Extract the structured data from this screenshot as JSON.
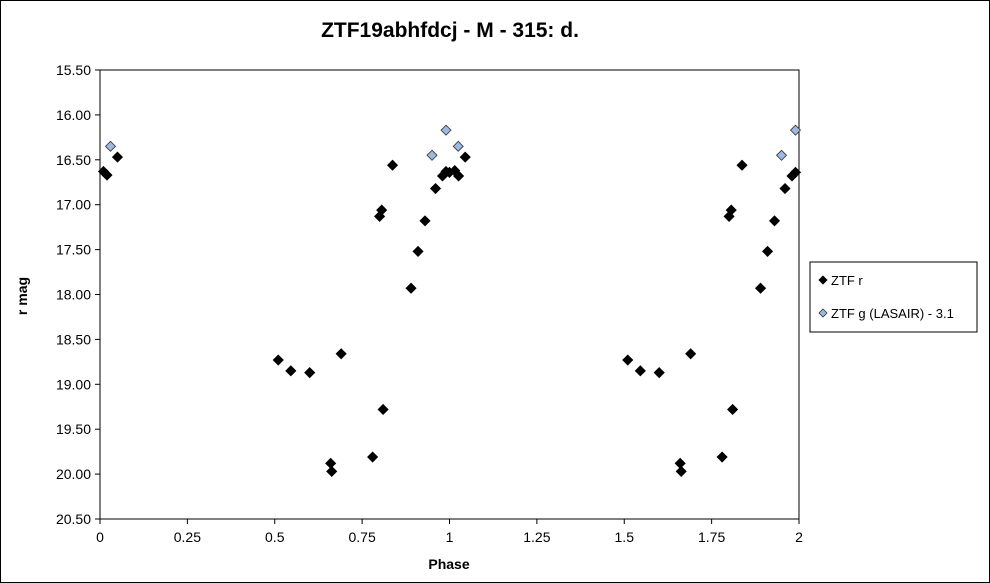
{
  "chart_data": {
    "type": "scatter",
    "title": "ZTF19abhfdcj - M - 315: d.",
    "xlabel": "Phase",
    "ylabel": "r mag",
    "xlim": [
      0,
      2
    ],
    "ylim": [
      15.5,
      20.5
    ],
    "y_inverted": true,
    "grid": false,
    "legend_placement": "right",
    "x_ticks": [
      "0",
      "0.25",
      "0.5",
      "0.75",
      "1",
      "1.25",
      "1.5",
      "1.75",
      "2"
    ],
    "y_ticks": [
      "15.50",
      "16.00",
      "16.50",
      "17.00",
      "17.50",
      "18.00",
      "18.50",
      "19.00",
      "19.50",
      "20.00",
      "20.50"
    ],
    "series": [
      {
        "name": "ZTF r",
        "color": "#000000",
        "marker": "diamond",
        "points": [
          [
            0.01,
            16.63
          ],
          [
            0.02,
            16.67
          ],
          [
            0.05,
            16.47
          ],
          [
            0.51,
            18.73
          ],
          [
            0.546,
            18.85
          ],
          [
            0.6,
            18.87
          ],
          [
            0.69,
            18.66
          ],
          [
            0.66,
            19.88
          ],
          [
            0.663,
            19.97
          ],
          [
            0.78,
            19.81
          ],
          [
            0.81,
            19.28
          ],
          [
            0.8,
            17.13
          ],
          [
            0.806,
            17.06
          ],
          [
            0.837,
            16.56
          ],
          [
            0.89,
            17.93
          ],
          [
            0.91,
            17.52
          ],
          [
            0.93,
            17.18
          ],
          [
            0.96,
            16.82
          ],
          [
            0.98,
            16.68
          ],
          [
            0.99,
            16.63
          ],
          [
            1.0,
            16.64
          ],
          [
            1.015,
            16.62
          ],
          [
            1.026,
            16.68
          ],
          [
            1.045,
            16.47
          ],
          [
            1.51,
            18.73
          ],
          [
            1.546,
            18.85
          ],
          [
            1.6,
            18.87
          ],
          [
            1.69,
            18.66
          ],
          [
            1.66,
            19.88
          ],
          [
            1.663,
            19.97
          ],
          [
            1.78,
            19.81
          ],
          [
            1.81,
            19.28
          ],
          [
            1.8,
            17.13
          ],
          [
            1.806,
            17.06
          ],
          [
            1.837,
            16.56
          ],
          [
            1.89,
            17.93
          ],
          [
            1.91,
            17.52
          ],
          [
            1.93,
            17.18
          ],
          [
            1.96,
            16.82
          ],
          [
            1.98,
            16.68
          ],
          [
            1.99,
            16.64
          ]
        ]
      },
      {
        "name": "ZTF g (LASAIR) - 3.1",
        "color": "#9db9e0",
        "marker": "diamond",
        "points": [
          [
            0.03,
            16.35
          ],
          [
            0.95,
            16.45
          ],
          [
            0.99,
            16.17
          ],
          [
            1.025,
            16.35
          ],
          [
            1.95,
            16.45
          ],
          [
            1.99,
            16.17
          ]
        ]
      }
    ]
  }
}
